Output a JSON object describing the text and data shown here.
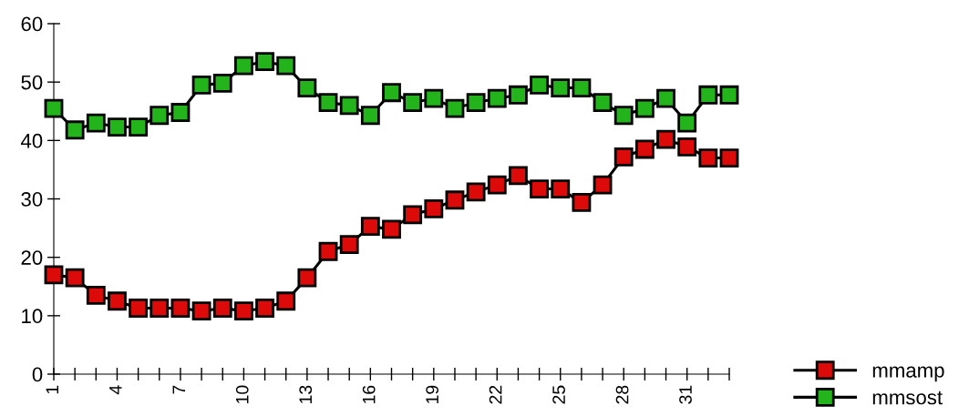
{
  "chart_data": {
    "type": "line",
    "categories": [
      "1",
      null,
      null,
      "4",
      null,
      null,
      "7",
      null,
      null,
      "10",
      null,
      null,
      "13",
      null,
      null,
      "16",
      null,
      null,
      "19",
      null,
      null,
      "22",
      null,
      null,
      "25",
      null,
      null,
      "28",
      null,
      null,
      "31",
      null,
      null
    ],
    "series": [
      {
        "name": "mmamp",
        "color": "#dd0a0a",
        "values": [
          17,
          16.5,
          13.5,
          12.5,
          11.3,
          11.3,
          11.3,
          10.8,
          11.3,
          10.8,
          11.3,
          12.5,
          16.5,
          21,
          22.2,
          25.3,
          24.8,
          27.3,
          28.3,
          29.8,
          31.2,
          32.4,
          34,
          31.7,
          31.7,
          29.4,
          32.4,
          37.2,
          38.5,
          40.2,
          38.9,
          37,
          37
        ]
      },
      {
        "name": "mmsost",
        "color": "#22b41a",
        "values": [
          45.5,
          41.8,
          43,
          42.3,
          42.3,
          44.3,
          44.8,
          49.5,
          49.8,
          52.8,
          53.5,
          52.8,
          49,
          46.5,
          46,
          44.3,
          48.2,
          46.5,
          47.2,
          45.5,
          46.5,
          47.2,
          47.8,
          49.5,
          49,
          49,
          46.5,
          44.3,
          45.5,
          47.2,
          43,
          47.8,
          47.8
        ]
      }
    ],
    "ylim": [
      0,
      60
    ],
    "yticks": [
      0,
      10,
      20,
      30,
      40,
      50,
      60
    ],
    "marker": "square",
    "line_style": "solid",
    "legend": "bottom right",
    "grid": false
  }
}
